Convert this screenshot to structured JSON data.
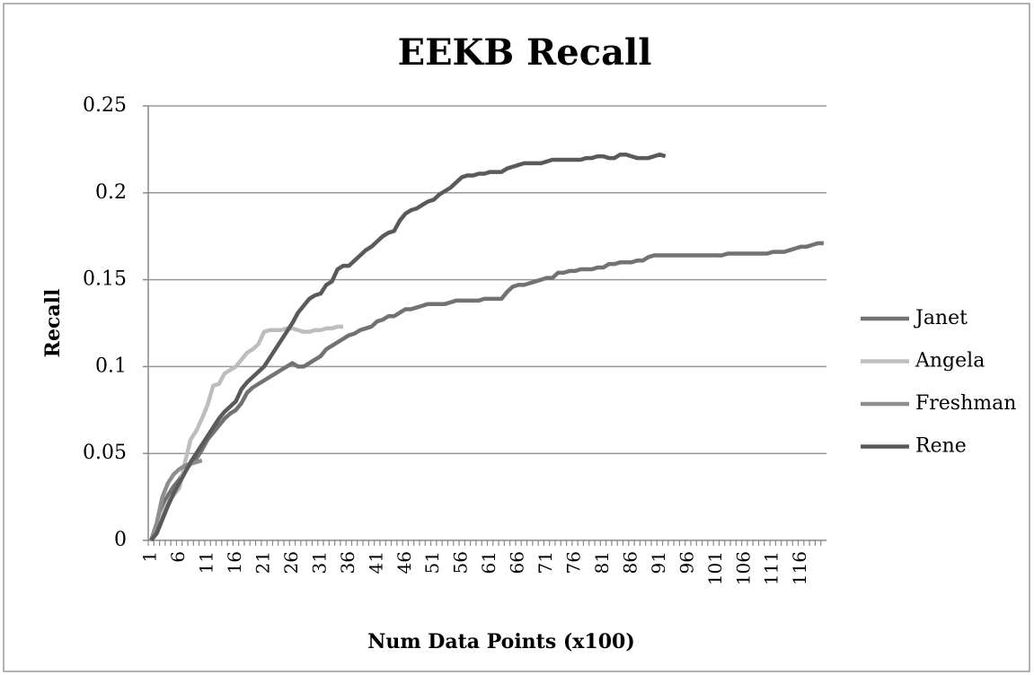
{
  "chart_data": {
    "type": "line",
    "title": "EEKB Recall",
    "x_label": "Num Data Points (x100)",
    "y_label": "Recall",
    "categories": [
      "1",
      null,
      null,
      null,
      null,
      "6",
      null,
      null,
      null,
      null,
      "11",
      null,
      null,
      null,
      null,
      "16",
      null,
      null,
      null,
      null,
      "21",
      null,
      null,
      null,
      null,
      "26",
      null,
      null,
      null,
      null,
      "31",
      null,
      null,
      null,
      null,
      "36",
      null,
      null,
      null,
      null,
      "41",
      null,
      null,
      null,
      null,
      "46",
      null,
      null,
      null,
      null,
      "51",
      null,
      null,
      null,
      null,
      "56",
      null,
      null,
      null,
      null,
      "61",
      null,
      null,
      null,
      null,
      "66",
      null,
      null,
      null,
      null,
      "71",
      null,
      null,
      null,
      null,
      "76",
      null,
      null,
      null,
      null,
      "81",
      null,
      null,
      null,
      null,
      "86",
      null,
      null,
      null,
      null,
      "91",
      null,
      null,
      null,
      null,
      "96",
      null,
      null,
      null,
      null,
      "101",
      null,
      null,
      null,
      null,
      "106",
      null,
      null,
      null,
      null,
      "111",
      null,
      null,
      null,
      null,
      "116",
      null,
      null,
      null,
      null
    ],
    "ylim": [
      0,
      0.25
    ],
    "yticks": [
      0,
      0.05,
      0.1,
      0.15,
      0.2,
      0.25
    ],
    "grid": true,
    "legend": "right",
    "series": [
      {
        "name": "Janet",
        "color": "#727272",
        "values": [
          0,
          0.008,
          0.02,
          0.026,
          0.031,
          0.035,
          0.04,
          0.044,
          0.047,
          0.052,
          0.058,
          0.062,
          0.066,
          0.07,
          0.073,
          0.075,
          0.079,
          0.085,
          0.088,
          0.09,
          0.092,
          0.094,
          0.096,
          0.098,
          0.1,
          0.102,
          0.1,
          0.1,
          0.102,
          0.104,
          0.106,
          0.11,
          0.112,
          0.114,
          0.116,
          0.118,
          0.119,
          0.121,
          0.122,
          0.123,
          0.126,
          0.127,
          0.129,
          0.129,
          0.131,
          0.133,
          0.133,
          0.134,
          0.135,
          0.136,
          0.136,
          0.136,
          0.136,
          0.137,
          0.138,
          0.138,
          0.138,
          0.138,
          0.138,
          0.139,
          0.139,
          0.139,
          0.139,
          0.143,
          0.146,
          0.147,
          0.147,
          0.148,
          0.149,
          0.15,
          0.151,
          0.151,
          0.154,
          0.154,
          0.155,
          0.155,
          0.156,
          0.156,
          0.156,
          0.157,
          0.157,
          0.159,
          0.159,
          0.16,
          0.16,
          0.16,
          0.161,
          0.161,
          0.163,
          0.164,
          0.164,
          0.164,
          0.164,
          0.164,
          0.164,
          0.164,
          0.164,
          0.164,
          0.164,
          0.164,
          0.164,
          0.164,
          0.165,
          0.165,
          0.165,
          0.165,
          0.165,
          0.165,
          0.165,
          0.165,
          0.166,
          0.166,
          0.166,
          0.167,
          0.168,
          0.169,
          0.169,
          0.17,
          0.171,
          0.171
        ]
      },
      {
        "name": "Angela",
        "color": "#bdbdbd",
        "values": [
          0,
          0.005,
          0.015,
          0.022,
          0.026,
          0.03,
          0.045,
          0.058,
          0.063,
          0.07,
          0.078,
          0.089,
          0.09,
          0.096,
          0.098,
          0.1,
          0.104,
          0.108,
          0.11,
          0.113,
          0.12,
          0.121,
          0.121,
          0.121,
          0.122,
          0.122,
          0.121,
          0.12,
          0.12,
          0.121,
          0.121,
          0.122,
          0.122,
          0.123,
          0.123,
          null,
          null,
          null,
          null,
          null,
          null,
          null,
          null,
          null,
          null,
          null,
          null,
          null,
          null,
          null,
          null,
          null,
          null,
          null,
          null,
          null,
          null,
          null,
          null,
          null,
          null,
          null,
          null,
          null,
          null,
          null,
          null,
          null,
          null,
          null,
          null,
          null,
          null,
          null,
          null,
          null,
          null,
          null,
          null,
          null,
          null,
          null,
          null,
          null,
          null,
          null,
          null,
          null,
          null,
          null,
          null,
          null,
          null,
          null,
          null,
          null,
          null,
          null,
          null,
          null,
          null,
          null,
          null,
          null,
          null,
          null,
          null,
          null,
          null,
          null,
          null,
          null,
          null,
          null,
          null,
          null,
          null,
          null,
          null,
          null
        ]
      },
      {
        "name": "Freshman",
        "color": "#8e8e8e",
        "values": [
          0,
          0.01,
          0.025,
          0.033,
          0.038,
          0.041,
          0.043,
          0.044,
          0.045,
          0.046,
          null,
          null,
          null,
          null,
          null,
          null,
          null,
          null,
          null,
          null,
          null,
          null,
          null,
          null,
          null,
          null,
          null,
          null,
          null,
          null,
          null,
          null,
          null,
          null,
          null,
          null,
          null,
          null,
          null,
          null,
          null,
          null,
          null,
          null,
          null,
          null,
          null,
          null,
          null,
          null,
          null,
          null,
          null,
          null,
          null,
          null,
          null,
          null,
          null,
          null,
          null,
          null,
          null,
          null,
          null,
          null,
          null,
          null,
          null,
          null,
          null,
          null,
          null,
          null,
          null,
          null,
          null,
          null,
          null,
          null,
          null,
          null,
          null,
          null,
          null,
          null,
          null,
          null,
          null,
          null,
          null,
          null,
          null,
          null,
          null,
          null,
          null,
          null,
          null,
          null,
          null,
          null,
          null,
          null,
          null,
          null,
          null,
          null,
          null,
          null,
          null,
          null,
          null,
          null,
          null,
          null,
          null,
          null,
          null,
          null
        ]
      },
      {
        "name": "Rene",
        "color": "#5a5a5a",
        "values": [
          0,
          0.004,
          0.012,
          0.02,
          0.027,
          0.033,
          0.039,
          0.045,
          0.05,
          0.055,
          0.06,
          0.065,
          0.07,
          0.074,
          0.077,
          0.08,
          0.087,
          0.091,
          0.094,
          0.097,
          0.1,
          0.105,
          0.11,
          0.115,
          0.12,
          0.125,
          0.131,
          0.135,
          0.139,
          0.141,
          0.142,
          0.147,
          0.149,
          0.156,
          0.158,
          0.158,
          0.161,
          0.164,
          0.167,
          0.169,
          0.172,
          0.175,
          0.177,
          0.178,
          0.184,
          0.188,
          0.19,
          0.191,
          0.193,
          0.195,
          0.196,
          0.199,
          0.201,
          0.203,
          0.206,
          0.209,
          0.21,
          0.21,
          0.211,
          0.211,
          0.212,
          0.212,
          0.212,
          0.214,
          0.215,
          0.216,
          0.217,
          0.217,
          0.217,
          0.217,
          0.218,
          0.219,
          0.219,
          0.219,
          0.219,
          0.219,
          0.219,
          0.22,
          0.22,
          0.221,
          0.221,
          0.22,
          0.22,
          0.222,
          0.222,
          0.221,
          0.22,
          0.22,
          0.22,
          0.221,
          0.222,
          0.221,
          null,
          null,
          null,
          null,
          null,
          null,
          null,
          null,
          null,
          null,
          null,
          null,
          null,
          null,
          null,
          null,
          null,
          null,
          null,
          null,
          null,
          null,
          null,
          null,
          null,
          null,
          null,
          null
        ]
      }
    ]
  }
}
